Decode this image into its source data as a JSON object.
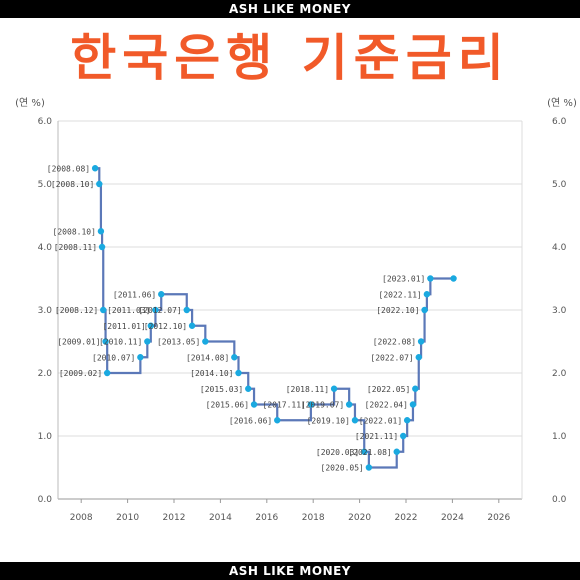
{
  "header": {
    "brand": "ASH LIKE MONEY"
  },
  "footer": {
    "brand": "ASH LIKE MONEY"
  },
  "chart_data": {
    "type": "line",
    "step": true,
    "title": "한국은행 기준금리",
    "ylabel_left": "(연 %)",
    "ylabel_right": "(연 %)",
    "ylim": [
      0,
      6
    ],
    "yticks": [
      "0.0",
      "1.0",
      "2.0",
      "3.0",
      "4.0",
      "5.0",
      "6.0"
    ],
    "xlim": [
      2007,
      2027
    ],
    "xticks": [
      "2008",
      "2010",
      "2012",
      "2014",
      "2016",
      "2018",
      "2020",
      "2022",
      "2024",
      "2026"
    ],
    "grid": true,
    "line_color": "#5b78b8",
    "point_color": "#1aa9e0",
    "points": [
      {
        "label": "[2008.08]",
        "x": 2008.6,
        "y": 5.25
      },
      {
        "label": "[2008.10]",
        "x": 2008.78,
        "y": 5.0
      },
      {
        "label": "[2008.10]",
        "x": 2008.85,
        "y": 4.25
      },
      {
        "label": "[2008.11]",
        "x": 2008.9,
        "y": 4.0
      },
      {
        "label": "[2008.12]",
        "x": 2008.95,
        "y": 3.0
      },
      {
        "label": "[2009.01]",
        "x": 2009.05,
        "y": 2.5
      },
      {
        "label": "[2009.02]",
        "x": 2009.12,
        "y": 2.0
      },
      {
        "label": "[2010.07]",
        "x": 2010.55,
        "y": 2.25
      },
      {
        "label": "[2010.11]",
        "x": 2010.85,
        "y": 2.5
      },
      {
        "label": "[2011.01]",
        "x": 2011.0,
        "y": 2.75
      },
      {
        "label": "[2011.03]",
        "x": 2011.2,
        "y": 3.0
      },
      {
        "label": "[2011.06]",
        "x": 2011.45,
        "y": 3.25
      },
      {
        "label": "[2012.07]",
        "x": 2012.55,
        "y": 3.0
      },
      {
        "label": "[2012.10]",
        "x": 2012.78,
        "y": 2.75
      },
      {
        "label": "[2013.05]",
        "x": 2013.35,
        "y": 2.5
      },
      {
        "label": "[2014.08]",
        "x": 2014.6,
        "y": 2.25
      },
      {
        "label": "[2014.10]",
        "x": 2014.78,
        "y": 2.0
      },
      {
        "label": "[2015.03]",
        "x": 2015.2,
        "y": 1.75
      },
      {
        "label": "[2015.06]",
        "x": 2015.45,
        "y": 1.5
      },
      {
        "label": "[2016.06]",
        "x": 2016.45,
        "y": 1.25
      },
      {
        "label": "[2017.11]",
        "x": 2017.9,
        "y": 1.5
      },
      {
        "label": "[2018.11]",
        "x": 2018.9,
        "y": 1.75
      },
      {
        "label": "[2019.07]",
        "x": 2019.55,
        "y": 1.5
      },
      {
        "label": "[2019.10]",
        "x": 2019.8,
        "y": 1.25
      },
      {
        "label": "[2020.03]",
        "x": 2020.2,
        "y": 0.75
      },
      {
        "label": "[2020.05]",
        "x": 2020.4,
        "y": 0.5
      },
      {
        "label": "[2021.08]",
        "x": 2021.6,
        "y": 0.75
      },
      {
        "label": "[2021.11]",
        "x": 2021.88,
        "y": 1.0
      },
      {
        "label": "[2022.01]",
        "x": 2022.05,
        "y": 1.25
      },
      {
        "label": "[2022.04]",
        "x": 2022.3,
        "y": 1.5
      },
      {
        "label": "[2022.05]",
        "x": 2022.4,
        "y": 1.75
      },
      {
        "label": "[2022.07]",
        "x": 2022.55,
        "y": 2.25
      },
      {
        "label": "[2022.08]",
        "x": 2022.65,
        "y": 2.5
      },
      {
        "label": "[2022.10]",
        "x": 2022.8,
        "y": 3.0
      },
      {
        "label": "[2022.11]",
        "x": 2022.9,
        "y": 3.25
      },
      {
        "label": "[2023.01]",
        "x": 2023.05,
        "y": 3.5
      },
      {
        "label": "",
        "x": 2024.05,
        "y": 3.5
      }
    ]
  }
}
